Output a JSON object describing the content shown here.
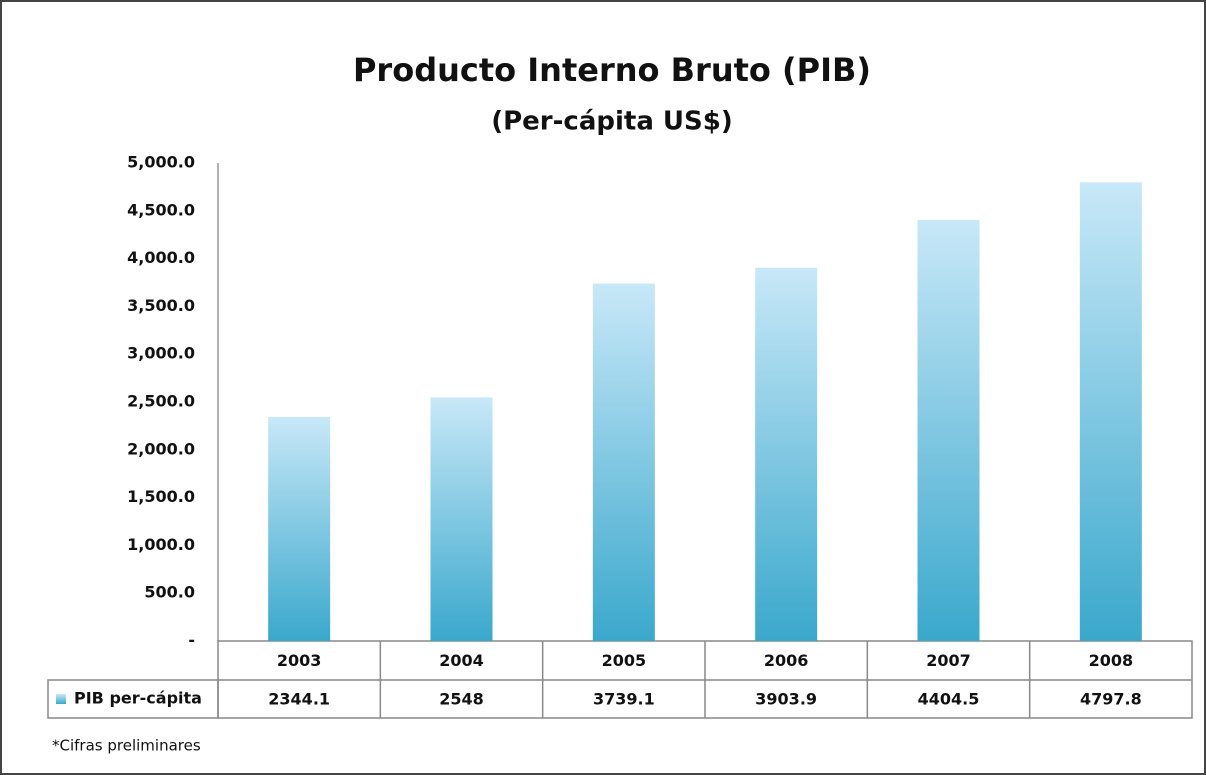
{
  "chart_data": {
    "type": "bar",
    "title": "Producto Interno Bruto (PIB)",
    "subtitle": "(Per-cápita US$)",
    "categories": [
      "2003",
      "2004",
      "2005",
      "2006",
      "2007",
      "2008"
    ],
    "series": [
      {
        "name": "PIB per-cápita",
        "color": "#3aa8cc",
        "gradient": [
          "#c8e8f8",
          "#3aa8cc"
        ],
        "values": [
          2344.1,
          2548,
          3739.1,
          3903.9,
          4404.5,
          4797.8
        ]
      }
    ],
    "ylim": [
      0,
      5000
    ],
    "yticks": [
      {
        "value": 0,
        "label": "-"
      },
      {
        "value": 500,
        "label": "500.0"
      },
      {
        "value": 1000,
        "label": "1,000.0"
      },
      {
        "value": 1500,
        "label": "1,500.0"
      },
      {
        "value": 2000,
        "label": "2,000.0"
      },
      {
        "value": 2500,
        "label": "2,500.0"
      },
      {
        "value": 3000,
        "label": "3,000.0"
      },
      {
        "value": 3500,
        "label": "3,500.0"
      },
      {
        "value": 4000,
        "label": "4,000.0"
      },
      {
        "value": 4500,
        "label": "4,500.0"
      },
      {
        "value": 5000,
        "label": "5,000.0"
      }
    ],
    "grid": false,
    "footnote": "*Cifras preliminares"
  }
}
